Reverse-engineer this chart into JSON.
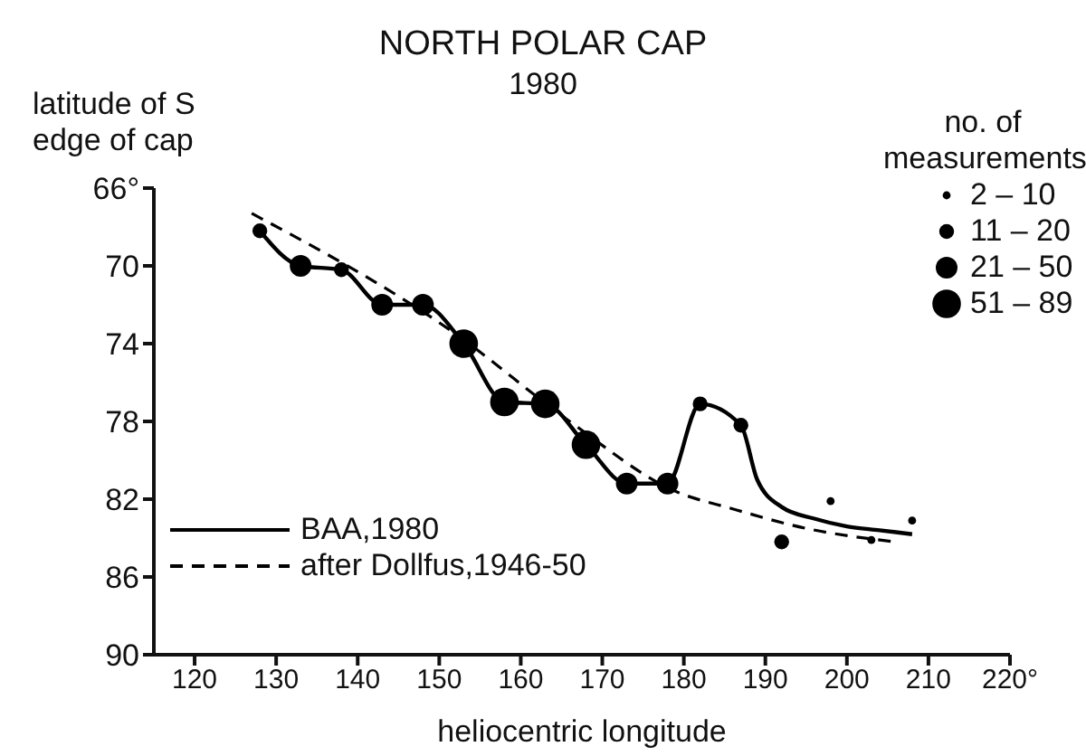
{
  "chart_data": {
    "type": "scatter",
    "title": "NORTH POLAR CAP",
    "subtitle": "1980",
    "xlabel": "heliocentric longitude",
    "ylabel": "latitude of S edge of cap",
    "legend_title": "no. of measurements",
    "legend": "top right",
    "marker": "circle",
    "xlim": [
      115,
      220
    ],
    "xticks": [
      120,
      130,
      140,
      150,
      160,
      170,
      180,
      190,
      200,
      210,
      {
        "value": 220,
        "label": "220°"
      }
    ],
    "ylim": [
      90,
      66
    ],
    "yticks": [
      {
        "value": 66,
        "label": "66°"
      },
      70,
      74,
      78,
      82,
      86,
      90
    ],
    "series": [
      {
        "name": "BAA,1980",
        "type": "line",
        "color": "#000000",
        "line_style": "solid",
        "marker": "none",
        "x": [
          128,
          133,
          138,
          143,
          148,
          153,
          158,
          163,
          168,
          173,
          178,
          182,
          187,
          189,
          192,
          196,
          200,
          204,
          208
        ],
        "values": [
          68.2,
          70,
          70.2,
          72,
          72,
          74,
          77,
          77.1,
          79.2,
          81.2,
          81.2,
          77.1,
          78.2,
          81,
          82.4,
          83,
          83.4,
          83.6,
          83.8
        ]
      },
      {
        "name": "after Dollfus,1946-50",
        "type": "line",
        "color": "#000000",
        "line_style": "dashed",
        "marker": "none",
        "x": [
          127,
          152,
          166,
          179,
          186,
          195,
          206
        ],
        "values": [
          67.3,
          73.5,
          78,
          81.6,
          82.5,
          83.5,
          84.2
        ]
      },
      {
        "name": "2 – 10",
        "color": "#000000",
        "x": [
          198,
          203,
          208
        ],
        "values": [
          82.1,
          84.1,
          83.1
        ]
      },
      {
        "name": "11 – 20",
        "color": "#000000",
        "x": [
          128,
          138,
          182,
          187,
          192
        ],
        "values": [
          68.2,
          70.2,
          77.1,
          78.2,
          84.2
        ]
      },
      {
        "name": "21 – 50",
        "color": "#000000",
        "x": [
          133,
          143,
          148,
          173,
          178
        ],
        "values": [
          70,
          72,
          72,
          81.2,
          81.2
        ]
      },
      {
        "name": "51 – 89",
        "color": "#000000",
        "x": [
          153,
          158,
          163,
          168
        ],
        "values": [
          74,
          77,
          77.1,
          79.2
        ]
      }
    ]
  }
}
